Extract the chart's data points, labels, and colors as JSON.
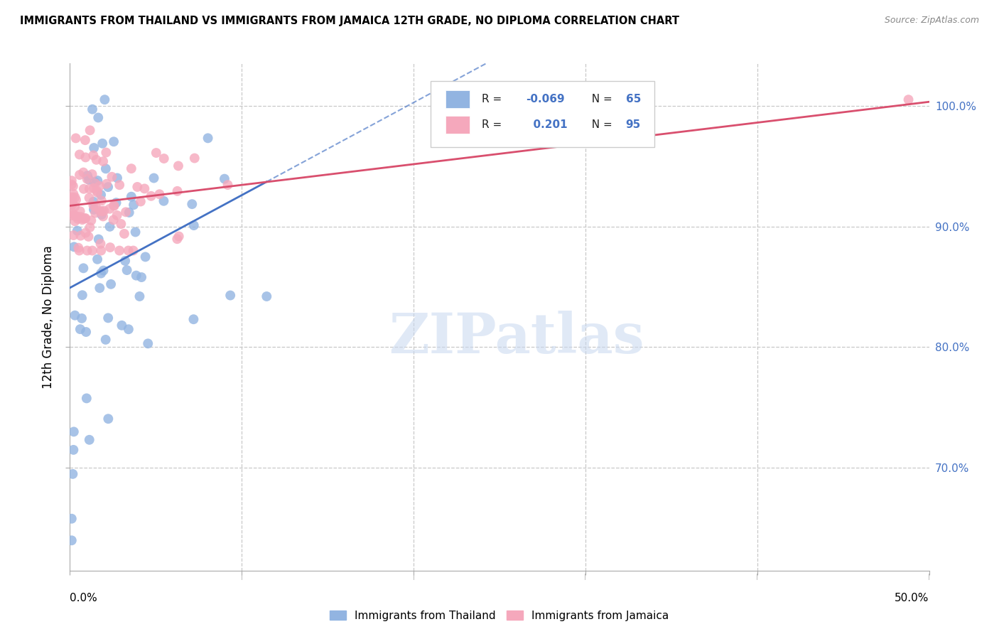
{
  "title": "IMMIGRANTS FROM THAILAND VS IMMIGRANTS FROM JAMAICA 12TH GRADE, NO DIPLOMA CORRELATION CHART",
  "source": "Source: ZipAtlas.com",
  "ylabel": "12th Grade, No Diploma",
  "legend_label_blue": "Immigrants from Thailand",
  "legend_label_pink": "Immigrants from Jamaica",
  "R_blue": -0.069,
  "N_blue": 65,
  "R_pink": 0.201,
  "N_pink": 95,
  "blue_color": "#92b4e1",
  "pink_color": "#f5a8bc",
  "line_blue": "#4472c4",
  "line_pink": "#d94f6e",
  "watermark": "ZIPatlas",
  "xlim": [
    0.0,
    0.5
  ],
  "ylim": [
    0.615,
    1.035
  ],
  "ytick_vals": [
    0.7,
    0.8,
    0.9,
    1.0
  ],
  "ytick_labels": [
    "70.0%",
    "80.0%",
    "90.0%",
    "100.0%"
  ],
  "xtick_labels_pos": [
    0.0,
    0.5
  ],
  "xtick_labels": [
    "0.0%",
    "50.0%"
  ]
}
